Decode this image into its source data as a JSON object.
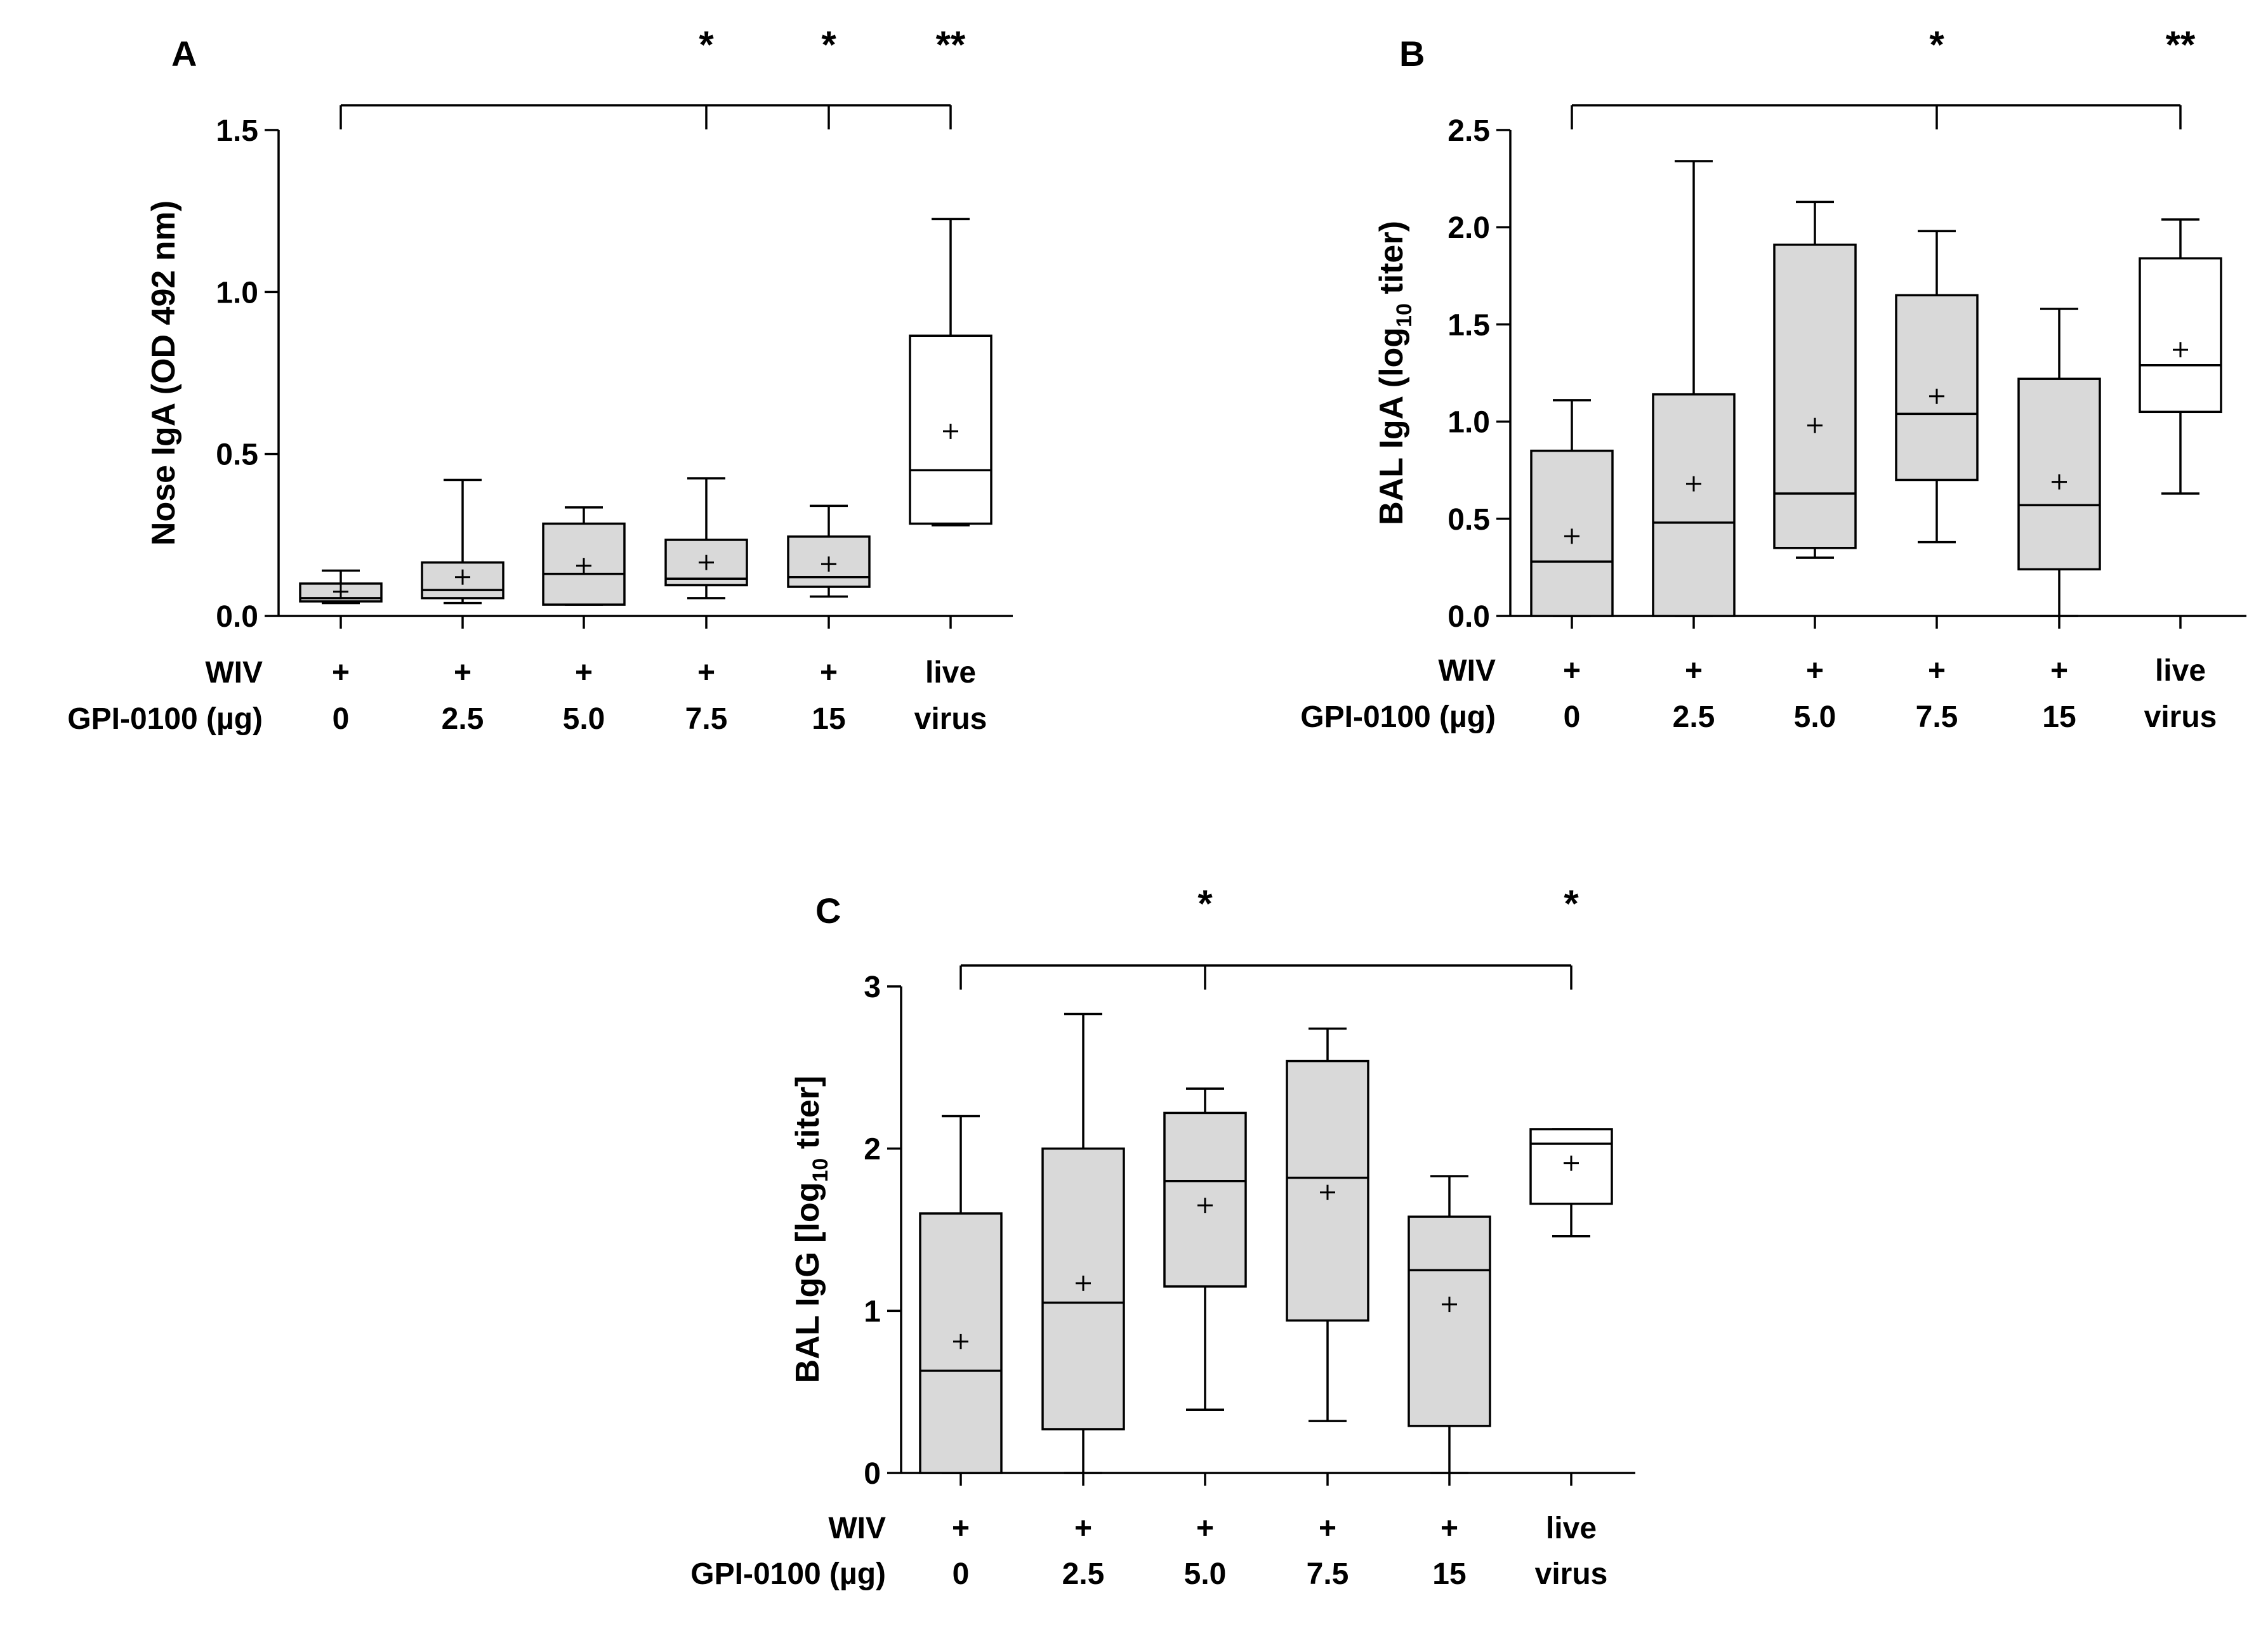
{
  "chart_data": [
    {
      "id": "A",
      "type": "box",
      "panel_label": "A",
      "ylabel": "Nose IgA (OD 492 nm)",
      "ylim": [
        0,
        1.5
      ],
      "yticks": [
        "0.0",
        "0.5",
        "1.0",
        "1.5"
      ],
      "row_labels": [
        "WIV",
        "GPI-0100 (µg)"
      ],
      "categories": [
        {
          "wiv": "+",
          "dose": "0",
          "min": 0.04,
          "q1": 0.045,
          "median": 0.055,
          "q3": 0.1,
          "max": 0.14,
          "mean": 0.075,
          "fill": "#d9d9d9"
        },
        {
          "wiv": "+",
          "dose": "2.5",
          "min": 0.04,
          "q1": 0.055,
          "median": 0.08,
          "q3": 0.165,
          "max": 0.42,
          "mean": 0.12,
          "fill": "#d9d9d9"
        },
        {
          "wiv": "+",
          "dose": "5.0",
          "min": 0.035,
          "q1": 0.035,
          "median": 0.13,
          "q3": 0.285,
          "max": 0.335,
          "mean": 0.155,
          "fill": "#d9d9d9"
        },
        {
          "wiv": "+",
          "dose": "7.5",
          "min": 0.055,
          "q1": 0.095,
          "median": 0.115,
          "q3": 0.235,
          "max": 0.425,
          "mean": 0.165,
          "fill": "#d9d9d9"
        },
        {
          "wiv": "+",
          "dose": "15",
          "min": 0.06,
          "q1": 0.09,
          "median": 0.12,
          "q3": 0.245,
          "max": 0.34,
          "mean": 0.16,
          "fill": "#d9d9d9"
        },
        {
          "wiv": "live",
          "dose": "virus",
          "min": 0.28,
          "q1": 0.285,
          "median": 0.45,
          "q3": 0.865,
          "max": 1.225,
          "mean": 0.57,
          "fill": "#ffffff"
        }
      ],
      "significance": [
        {
          "group": "7.5",
          "label": "*"
        },
        {
          "group": "15",
          "label": "*"
        },
        {
          "group": "virus",
          "label": "**"
        }
      ]
    },
    {
      "id": "B",
      "type": "box",
      "panel_label": "B",
      "ylabel": "BAL IgA (log10 titer)",
      "ylim": [
        0,
        2.5
      ],
      "yticks": [
        "0.0",
        "0.5",
        "1.0",
        "1.5",
        "2.0",
        "2.5"
      ],
      "row_labels": [
        "WIV",
        "GPI-0100 (µg)"
      ],
      "categories": [
        {
          "wiv": "+",
          "dose": "0",
          "min": 0.0,
          "q1": 0.0,
          "median": 0.28,
          "q3": 0.85,
          "max": 1.11,
          "mean": 0.41,
          "fill": "#d9d9d9"
        },
        {
          "wiv": "+",
          "dose": "2.5",
          "min": 0.0,
          "q1": 0.0,
          "median": 0.48,
          "q3": 1.14,
          "max": 2.34,
          "mean": 0.68,
          "fill": "#d9d9d9"
        },
        {
          "wiv": "+",
          "dose": "5.0",
          "min": 0.3,
          "q1": 0.35,
          "median": 0.63,
          "q3": 1.91,
          "max": 2.13,
          "mean": 0.98,
          "fill": "#d9d9d9"
        },
        {
          "wiv": "+",
          "dose": "7.5",
          "min": 0.38,
          "q1": 0.7,
          "median": 1.04,
          "q3": 1.65,
          "max": 1.98,
          "mean": 1.13,
          "fill": "#d9d9d9"
        },
        {
          "wiv": "+",
          "dose": "15",
          "min": 0.0,
          "q1": 0.24,
          "median": 0.57,
          "q3": 1.22,
          "max": 1.58,
          "mean": 0.69,
          "fill": "#d9d9d9"
        },
        {
          "wiv": "live",
          "dose": "virus",
          "min": 0.63,
          "q1": 1.05,
          "median": 1.29,
          "q3": 1.84,
          "max": 2.04,
          "mean": 1.37,
          "fill": "#ffffff"
        }
      ],
      "significance": [
        {
          "group": "7.5",
          "label": "*"
        },
        {
          "group": "virus",
          "label": "**"
        }
      ]
    },
    {
      "id": "C",
      "type": "box",
      "panel_label": "C",
      "ylabel": "BAL IgG [log10 titer]",
      "ylim": [
        0,
        3
      ],
      "yticks": [
        "0",
        "1",
        "2",
        "3"
      ],
      "row_labels": [
        "WIV",
        "GPI-0100 (µg)"
      ],
      "categories": [
        {
          "wiv": "+",
          "dose": "0",
          "min": 0.0,
          "q1": 0.0,
          "median": 0.63,
          "q3": 1.6,
          "max": 2.2,
          "mean": 0.81,
          "fill": "#d9d9d9"
        },
        {
          "wiv": "+",
          "dose": "2.5",
          "min": 0.0,
          "q1": 0.27,
          "median": 1.05,
          "q3": 2.0,
          "max": 2.83,
          "mean": 1.17,
          "fill": "#d9d9d9"
        },
        {
          "wiv": "+",
          "dose": "5.0",
          "min": 0.39,
          "q1": 1.15,
          "median": 1.8,
          "q3": 2.22,
          "max": 2.37,
          "mean": 1.65,
          "fill": "#d9d9d9"
        },
        {
          "wiv": "+",
          "dose": "7.5",
          "min": 0.32,
          "q1": 0.94,
          "median": 1.82,
          "q3": 2.54,
          "max": 2.74,
          "mean": 1.73,
          "fill": "#d9d9d9"
        },
        {
          "wiv": "+",
          "dose": "15",
          "min": 0.0,
          "q1": 0.29,
          "median": 1.25,
          "q3": 1.58,
          "max": 1.83,
          "mean": 1.04,
          "fill": "#d9d9d9"
        },
        {
          "wiv": "live",
          "dose": "virus",
          "min": 1.46,
          "q1": 1.66,
          "median": 2.03,
          "q3": 2.12,
          "max": 2.12,
          "mean": 1.91,
          "fill": "#ffffff"
        }
      ],
      "significance": [
        {
          "group": "5.0",
          "label": "*"
        },
        {
          "group": "virus",
          "label": "*"
        }
      ]
    }
  ]
}
